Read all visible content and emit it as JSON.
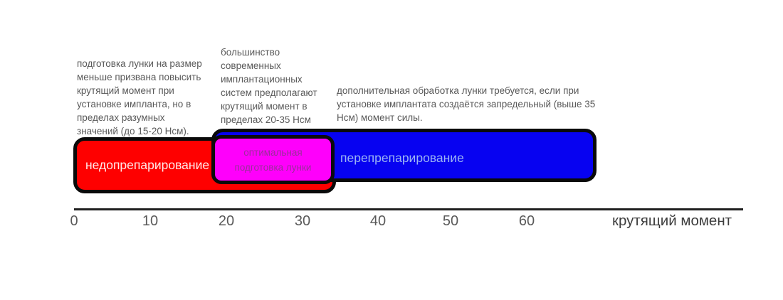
{
  "annotations": {
    "under_note": "подготовка лунки на размер\nменьше призвана повысить\nкрутящий момент при\nустановке импланта, но в\nпределах разумных\nзначений (до 15-20 Нсм).",
    "optimal_note": "большинство\nсовременных\nимплантационных\nсистем предполагают\nкрутящий момент в\nпределах 20-35 Нсм",
    "over_note": "дополнительная обработка лунки требуется, если при\nустановке имплантата создаётся запредельный (выше 35\nНсм) момент силы."
  },
  "bands": {
    "under": {
      "label": "недопрепарирование",
      "fill": "#fe0000",
      "label_color": "#ffe9e9",
      "approx_range_ncm": [
        0,
        34
      ]
    },
    "optimal": {
      "label": "оптимальная\nподготовка лунки",
      "fill": "#fe00fb",
      "label_color": "#9b2e9b",
      "approx_range_ncm": [
        18,
        34
      ]
    },
    "over": {
      "label": "перепрепарирование",
      "fill": "#0702f1",
      "label_color": "#9cb4f4",
      "approx_range_ncm": [
        18,
        69
      ]
    }
  },
  "axis": {
    "ticks": [
      "0",
      "10",
      "20",
      "30",
      "40",
      "50",
      "60"
    ],
    "title": "крутящий момент"
  },
  "colors": {
    "border": "#0a0a0a",
    "annotation_text": "#595959",
    "axis_line": "#1f1f1f",
    "tick_text": "#595959",
    "axis_title_text": "#3d3d3d",
    "background": "#ffffff"
  }
}
